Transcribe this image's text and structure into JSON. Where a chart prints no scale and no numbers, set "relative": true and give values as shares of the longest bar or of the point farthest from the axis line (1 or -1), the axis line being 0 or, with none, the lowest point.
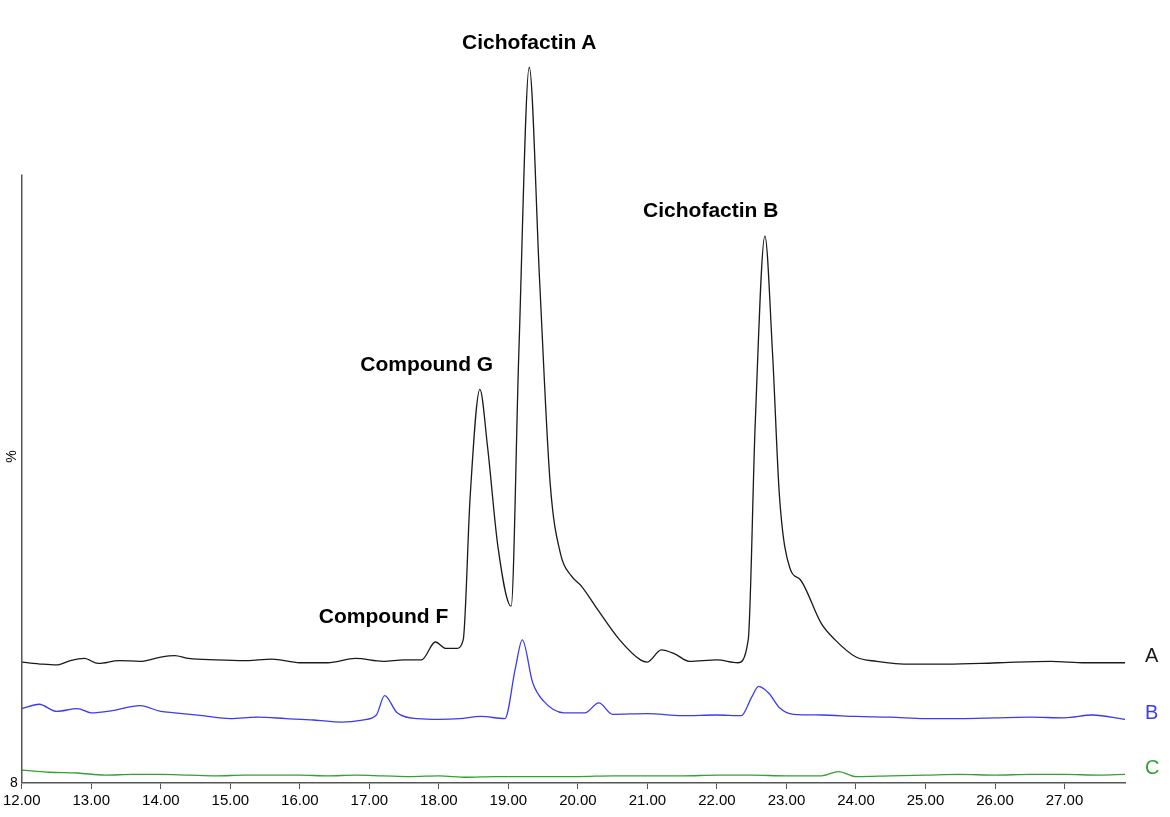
{
  "chart_data": {
    "type": "line",
    "relative": true,
    "ylabel": "%",
    "xlim": [
      12,
      27.87
    ],
    "xticks": [
      {
        "value": 12,
        "label": "12.00"
      },
      {
        "value": 13,
        "label": "13.00"
      },
      {
        "value": 14,
        "label": "14.00"
      },
      {
        "value": 15,
        "label": "15.00"
      },
      {
        "value": 16,
        "label": "16.00"
      },
      {
        "value": 17,
        "label": "17.00"
      },
      {
        "value": 18,
        "label": "18.00"
      },
      {
        "value": 19,
        "label": "19.00"
      },
      {
        "value": 20,
        "label": "20.00"
      },
      {
        "value": 21,
        "label": "21.00"
      },
      {
        "value": 22,
        "label": "22.00"
      },
      {
        "value": 23,
        "label": "23.00"
      },
      {
        "value": 24,
        "label": "24.00"
      },
      {
        "value": 25,
        "label": "25.00"
      },
      {
        "value": 26,
        "label": "26.00"
      },
      {
        "value": 27,
        "label": "27.00"
      }
    ],
    "series": [
      {
        "name": "A",
        "color": "#1a1a1a",
        "x": [
          12,
          12.3,
          12.5,
          12.7,
          12.9,
          13.1,
          13.4,
          13.7,
          14,
          14.2,
          14.4,
          14.8,
          15.2,
          15.6,
          16,
          16.4,
          16.8,
          17.2,
          17.5,
          17.75,
          17.95,
          18.1,
          18.25,
          18.35,
          18.45,
          18.59,
          18.7,
          18.85,
          19.04,
          19.15,
          19.3,
          19.45,
          19.6,
          19.75,
          19.9,
          20.05,
          20.3,
          20.6,
          20.9,
          21.0,
          21.2,
          21.4,
          21.6,
          22.0,
          22.3,
          22.45,
          22.55,
          22.69,
          22.8,
          22.9,
          23.05,
          23.2,
          23.5,
          23.7,
          24,
          24.3,
          24.8,
          25.3,
          25.8,
          26.3,
          26.8,
          27.3,
          27.87
        ],
        "values": [
          0.169,
          0.166,
          0.165,
          0.171,
          0.174,
          0.167,
          0.171,
          0.17,
          0.176,
          0.178,
          0.174,
          0.172,
          0.171,
          0.173,
          0.168,
          0.168,
          0.174,
          0.17,
          0.172,
          0.172,
          0.197,
          0.188,
          0.188,
          0.2,
          0.4,
          0.55,
          0.47,
          0.33,
          0.247,
          0.6,
          1.0,
          0.7,
          0.42,
          0.32,
          0.29,
          0.275,
          0.24,
          0.2,
          0.172,
          0.169,
          0.186,
          0.18,
          0.17,
          0.172,
          0.168,
          0.2,
          0.5,
          0.764,
          0.6,
          0.4,
          0.3,
          0.284,
          0.223,
          0.2,
          0.176,
          0.17,
          0.166,
          0.166,
          0.167,
          0.169,
          0.17,
          0.168,
          0.168
        ]
      },
      {
        "name": "B",
        "color": "#3b3bf0",
        "x": [
          12,
          12.25,
          12.5,
          12.8,
          13,
          13.3,
          13.7,
          14,
          14.2,
          14.6,
          15,
          15.4,
          15.8,
          16.2,
          16.6,
          16.9,
          17.1,
          17.22,
          17.4,
          17.7,
          18,
          18.3,
          18.6,
          18.95,
          19.1,
          19.2,
          19.35,
          19.5,
          19.8,
          20.1,
          20.3,
          20.5,
          21,
          21.5,
          22,
          22.35,
          22.5,
          22.6,
          22.75,
          22.9,
          23.1,
          23.5,
          24,
          24.5,
          25,
          25.5,
          26,
          26.5,
          27,
          27.4,
          27.87
        ],
        "values": [
          0.104,
          0.11,
          0.1,
          0.104,
          0.098,
          0.101,
          0.108,
          0.1,
          0.098,
          0.094,
          0.09,
          0.092,
          0.09,
          0.088,
          0.085,
          0.088,
          0.095,
          0.122,
          0.098,
          0.09,
          0.089,
          0.09,
          0.093,
          0.09,
          0.16,
          0.2,
          0.14,
          0.115,
          0.098,
          0.098,
          0.112,
          0.096,
          0.097,
          0.094,
          0.095,
          0.094,
          0.12,
          0.135,
          0.125,
          0.105,
          0.096,
          0.095,
          0.093,
          0.092,
          0.09,
          0.09,
          0.091,
          0.092,
          0.091,
          0.095,
          0.089
        ]
      },
      {
        "name": "C",
        "color": "#33a033",
        "x": [
          12,
          12.4,
          12.8,
          13.2,
          13.6,
          14,
          14.4,
          14.8,
          15.2,
          15.6,
          16,
          16.4,
          16.8,
          17.2,
          17.6,
          18,
          18.4,
          18.8,
          19.2,
          19.6,
          20,
          20.5,
          21,
          21.5,
          22,
          22.5,
          23,
          23.5,
          23.75,
          24,
          24.5,
          25,
          25.5,
          26,
          26.5,
          27,
          27.5,
          27.87
        ],
        "values": [
          0.018,
          0.015,
          0.014,
          0.011,
          0.012,
          0.012,
          0.011,
          0.01,
          0.011,
          0.011,
          0.011,
          0.01,
          0.011,
          0.01,
          0.009,
          0.01,
          0.008,
          0.009,
          0.009,
          0.009,
          0.009,
          0.01,
          0.01,
          0.01,
          0.011,
          0.011,
          0.01,
          0.01,
          0.016,
          0.009,
          0.01,
          0.011,
          0.012,
          0.011,
          0.012,
          0.012,
          0.011,
          0.012
        ]
      }
    ],
    "annotations": [
      {
        "text": "Compound F",
        "x": 17.95,
        "y": 0.197
      },
      {
        "text": "Compound G",
        "x": 18.59,
        "y": 0.55
      },
      {
        "text": "Cichofactin A",
        "x": 19.3,
        "y": 1.0
      },
      {
        "text": "Cichofactin B",
        "x": 22.69,
        "y": 0.764
      },
      "8"
    ],
    "marker": "none",
    "line_style": "solid",
    "grid": false,
    "legend": false
  }
}
